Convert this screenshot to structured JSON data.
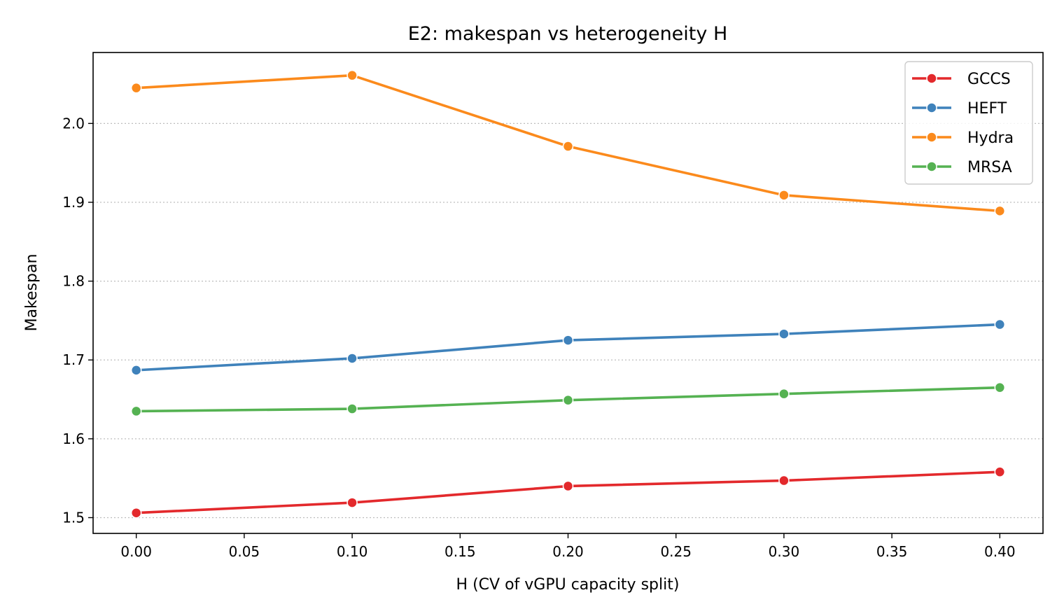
{
  "chart_data": {
    "type": "line",
    "title": "E2: makespan vs heterogeneity H",
    "xlabel": "H (CV of vGPU capacity split)",
    "ylabel": "Makespan",
    "xlim": [
      -0.02,
      0.42
    ],
    "ylim": [
      1.48,
      2.09
    ],
    "xticks": [
      0.0,
      0.05,
      0.1,
      0.15,
      0.2,
      0.25,
      0.3,
      0.35,
      0.4
    ],
    "xtick_labels": [
      "0.00",
      "0.05",
      "0.10",
      "0.15",
      "0.20",
      "0.25",
      "0.30",
      "0.35",
      "0.40"
    ],
    "yticks": [
      1.5,
      1.6,
      1.7,
      1.8,
      1.9,
      2.0
    ],
    "ytick_labels": [
      "1.5",
      "1.6",
      "1.7",
      "1.8",
      "1.9",
      "2.0"
    ],
    "grid": "y-dotted",
    "legend_position": "top-right",
    "x": [
      0.0,
      0.1,
      0.2,
      0.3,
      0.4
    ],
    "series": [
      {
        "name": "GCCS",
        "color": "#e3292c",
        "values": [
          1.506,
          1.519,
          1.54,
          1.547,
          1.558
        ]
      },
      {
        "name": "HEFT",
        "color": "#3f82bb",
        "values": [
          1.687,
          1.702,
          1.725,
          1.733,
          1.745
        ]
      },
      {
        "name": "Hydra",
        "color": "#fb8a1c",
        "values": [
          2.045,
          2.061,
          1.971,
          1.909,
          1.889
        ]
      },
      {
        "name": "MRSA",
        "color": "#55b252",
        "values": [
          1.635,
          1.638,
          1.649,
          1.657,
          1.665
        ]
      }
    ]
  }
}
